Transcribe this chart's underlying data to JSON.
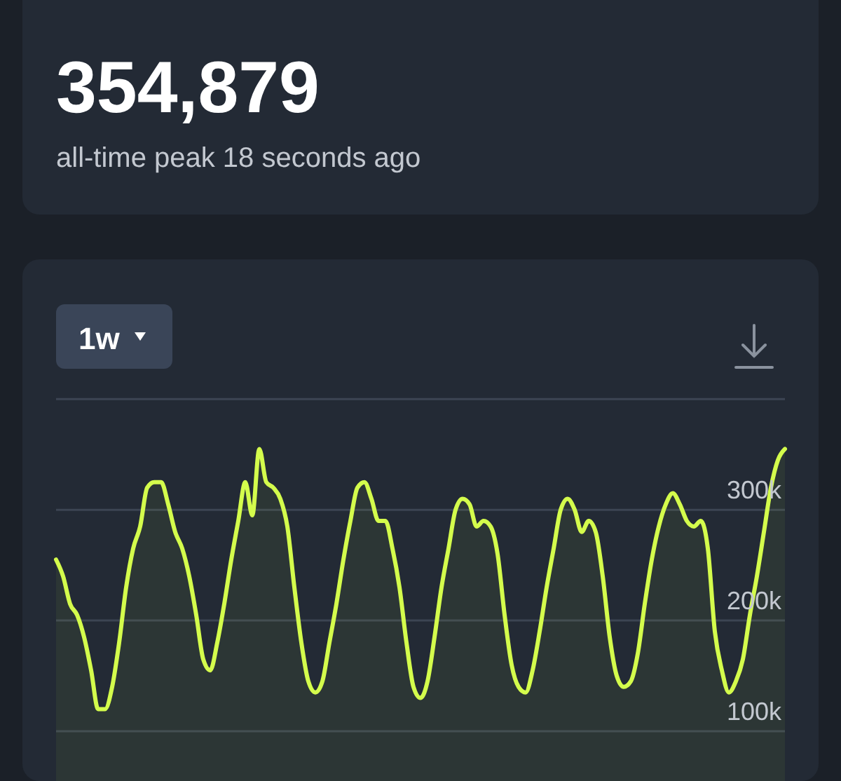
{
  "chart_data": {
    "type": "area",
    "title": "354,879",
    "subtitle": "all-time peak 18 seconds ago",
    "annotations": [
      "1w"
    ],
    "categories": [
      null,
      null,
      null,
      null,
      null,
      null,
      null,
      null,
      null,
      null,
      null,
      null,
      null,
      null,
      null,
      null,
      null,
      null,
      null,
      null,
      null,
      null,
      null,
      null,
      null,
      null,
      null,
      null,
      null,
      null,
      null,
      null,
      null,
      null,
      null,
      null,
      null,
      null,
      null,
      null,
      null,
      null,
      null,
      null,
      null,
      null,
      null,
      null,
      null,
      null,
      null,
      null,
      null,
      null,
      null,
      null,
      null,
      null,
      null,
      null,
      null,
      null,
      null,
      null,
      null,
      null,
      null,
      null,
      null,
      null,
      null,
      null,
      null,
      null,
      null,
      null,
      null,
      null,
      null,
      null,
      null,
      null,
      null,
      null,
      null,
      null,
      null,
      null,
      null,
      null,
      null,
      null,
      null,
      null,
      null,
      null,
      null,
      null,
      null,
      null,
      null,
      null,
      null,
      null,
      null
    ],
    "series": [
      {
        "color": "#d4fc4c",
        "values": [
          255000,
          240000,
          215000,
          205000,
          185000,
          155000,
          120000,
          120000,
          140000,
          180000,
          230000,
          265000,
          285000,
          320000,
          325000,
          325000,
          305000,
          280000,
          265000,
          240000,
          205000,
          165000,
          155000,
          180000,
          215000,
          255000,
          290000,
          325000,
          295000,
          355000,
          325000,
          320000,
          310000,
          285000,
          230000,
          180000,
          145000,
          135000,
          145000,
          180000,
          215000,
          255000,
          290000,
          320000,
          325000,
          310000,
          290000,
          290000,
          265000,
          230000,
          180000,
          140000,
          130000,
          145000,
          185000,
          230000,
          265000,
          300000,
          310000,
          305000,
          285000,
          290000,
          285000,
          260000,
          205000,
          160000,
          140000,
          135000,
          155000,
          190000,
          230000,
          265000,
          300000,
          310000,
          300000,
          280000,
          290000,
          280000,
          240000,
          185000,
          150000,
          140000,
          145000,
          170000,
          215000,
          255000,
          285000,
          305000,
          315000,
          305000,
          290000,
          285000,
          290000,
          265000,
          190000,
          155000,
          135000,
          145000,
          165000,
          205000,
          240000,
          280000,
          320000,
          345000,
          355000
        ]
      }
    ],
    "ylim": [
      55000,
      525000
    ],
    "yticks": [
      {
        "value": 100000,
        "label": "100k"
      },
      {
        "value": 200000,
        "label": "200k"
      },
      {
        "value": 300000,
        "label": "300k"
      },
      {
        "value": 400000,
        "label": null
      }
    ],
    "grid": "y",
    "tick_labels": "y"
  }
}
